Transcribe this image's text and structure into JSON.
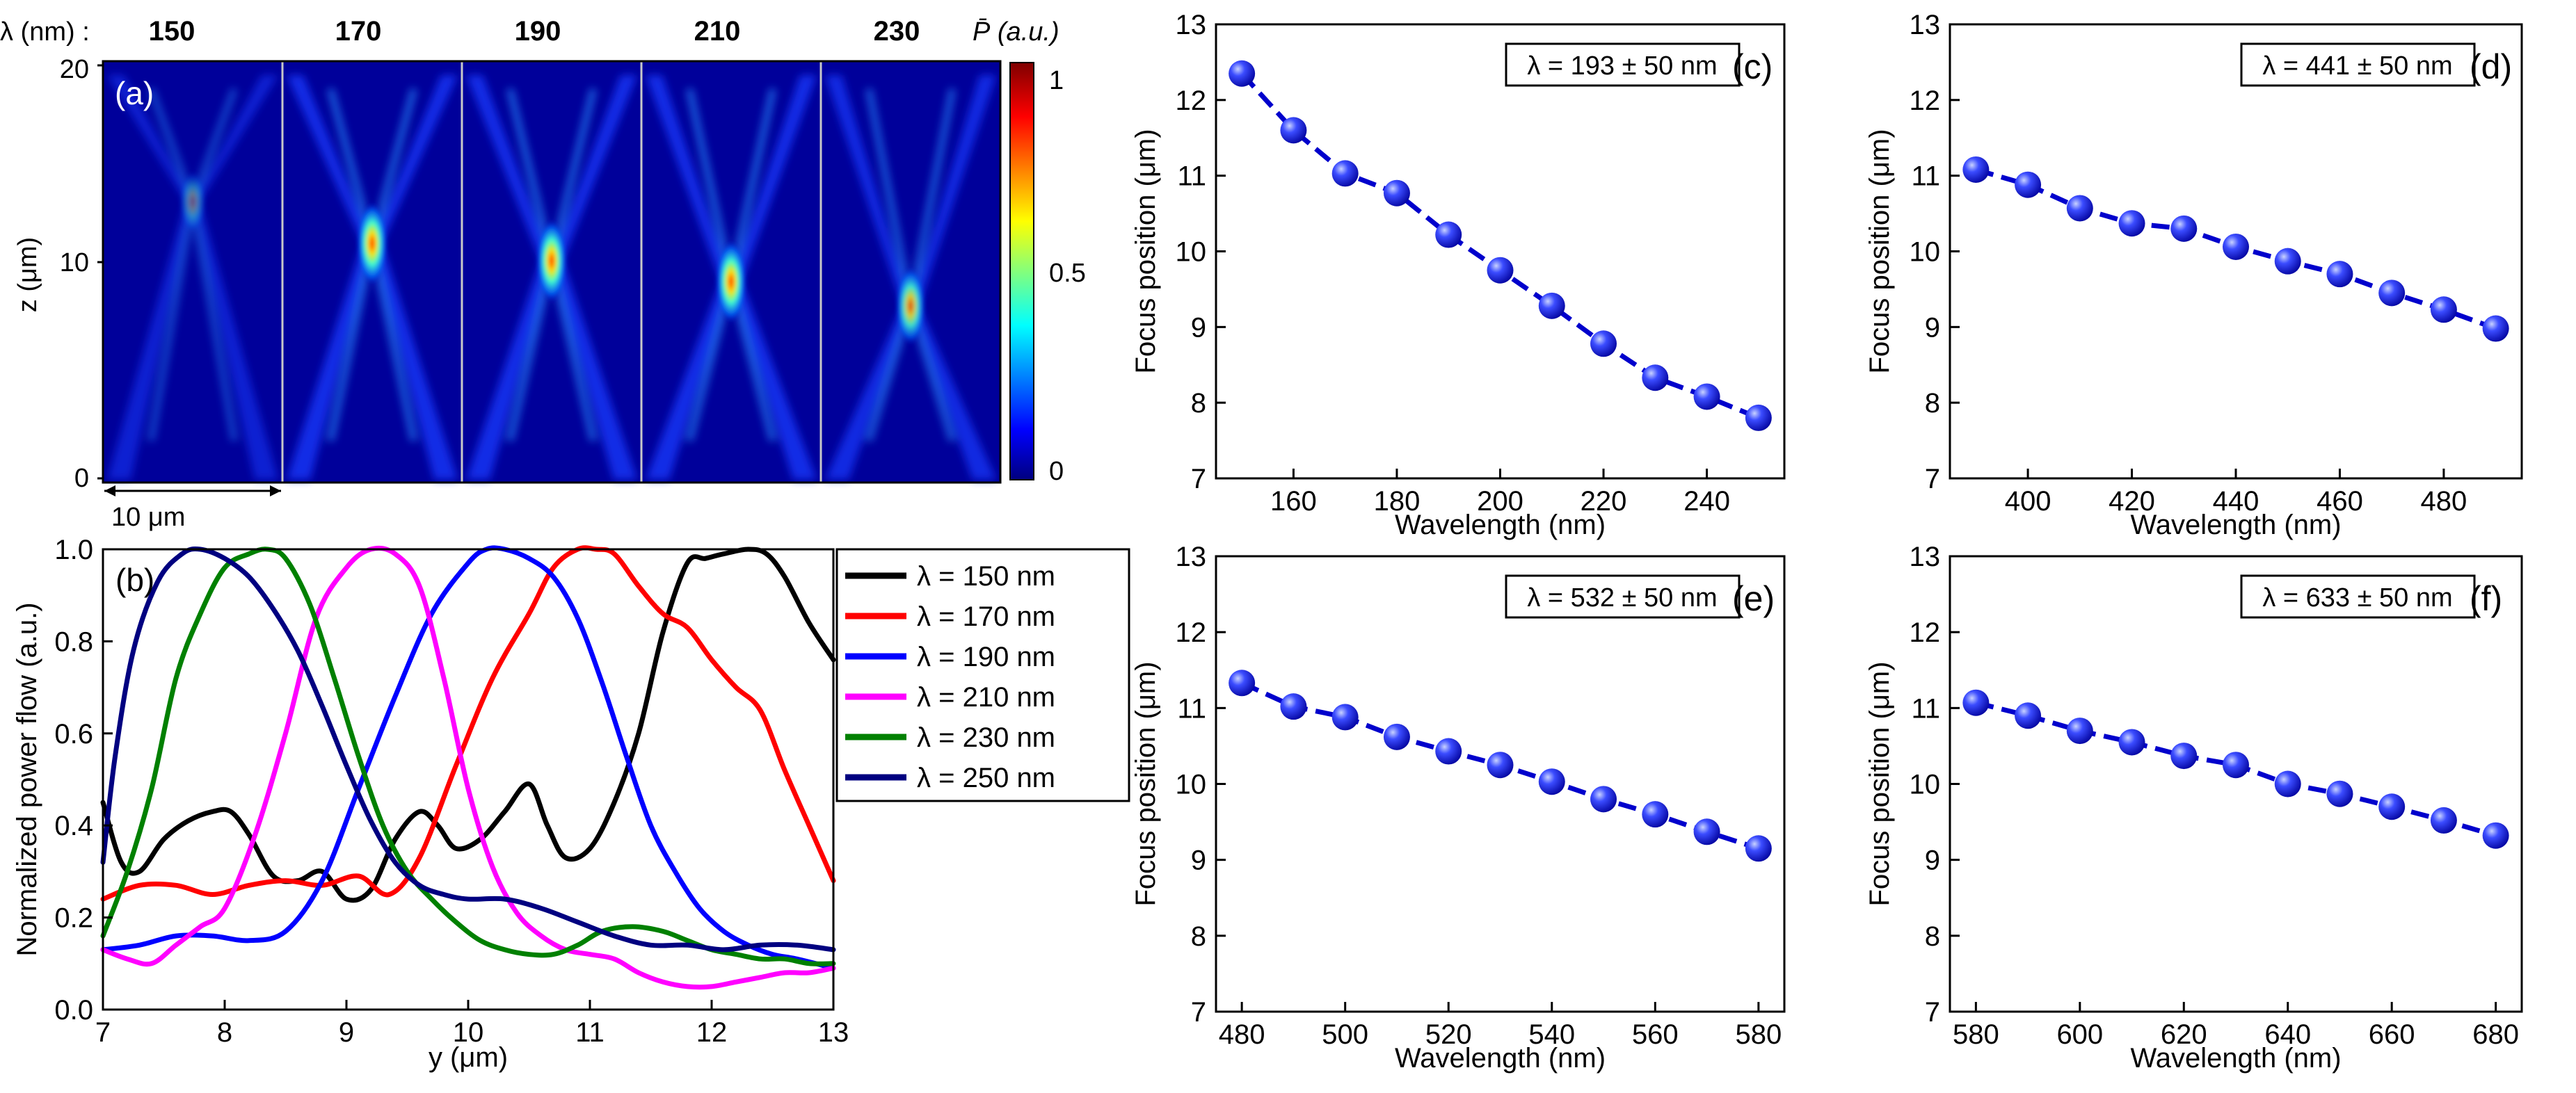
{
  "panel_a": {
    "lambda_label": "λ (nm) :",
    "wavelengths": [
      "150",
      "170",
      "190",
      "210",
      "230"
    ],
    "tag": "(a)",
    "ylabel": "z (μm)",
    "yticks": [
      "0",
      "10",
      "20"
    ],
    "scalebar_label": "10 μm",
    "colorbar_title": "P̄ (a.u.)",
    "colorbar_ticks": [
      "1",
      "0.5",
      "0"
    ],
    "colormap": [
      "#00007f",
      "#0000ff",
      "#00ffff",
      "#ffff00",
      "#ff0000",
      "#7f0000"
    ]
  },
  "chart_data": [
    {
      "id": "b",
      "type": "line",
      "tag": "(b)",
      "title": "",
      "xlabel": "y (μm)",
      "ylabel": "Normalized power flow (a.u.)",
      "xlim": [
        7,
        13
      ],
      "ylim": [
        0,
        1
      ],
      "xticks": [
        "7",
        "8",
        "9",
        "10",
        "11",
        "12",
        "13"
      ],
      "yticks": [
        "0.0",
        "0.2",
        "0.4",
        "0.6",
        "0.8",
        "1.0"
      ],
      "legend": "right",
      "series": [
        {
          "name": "λ = 150 nm",
          "color": "#000000",
          "x": [
            7.0,
            7.15,
            7.3,
            7.5,
            7.7,
            7.9,
            8.05,
            8.2,
            8.4,
            8.6,
            8.8,
            9.0,
            9.2,
            9.4,
            9.6,
            9.75,
            9.9,
            10.1,
            10.3,
            10.5,
            10.65,
            10.8,
            11.0,
            11.2,
            11.4,
            11.6,
            11.8,
            11.95,
            12.1,
            12.3,
            12.45,
            12.6,
            12.8,
            13.0
          ],
          "y": [
            0.45,
            0.32,
            0.3,
            0.37,
            0.41,
            0.43,
            0.43,
            0.38,
            0.29,
            0.28,
            0.3,
            0.24,
            0.26,
            0.37,
            0.43,
            0.4,
            0.35,
            0.37,
            0.43,
            0.49,
            0.4,
            0.33,
            0.35,
            0.45,
            0.6,
            0.82,
            0.97,
            0.98,
            0.99,
            1.0,
            0.99,
            0.94,
            0.84,
            0.76
          ]
        },
        {
          "name": "λ = 170 nm",
          "color": "#ff0000",
          "x": [
            7.0,
            7.3,
            7.6,
            7.9,
            8.2,
            8.5,
            8.8,
            9.1,
            9.35,
            9.6,
            9.9,
            10.2,
            10.5,
            10.7,
            10.9,
            11.05,
            11.2,
            11.4,
            11.6,
            11.8,
            12.0,
            12.2,
            12.4,
            12.6,
            12.8,
            13.0
          ],
          "y": [
            0.24,
            0.27,
            0.27,
            0.25,
            0.27,
            0.28,
            0.27,
            0.29,
            0.25,
            0.33,
            0.53,
            0.72,
            0.86,
            0.96,
            1.0,
            1.0,
            0.99,
            0.92,
            0.86,
            0.83,
            0.76,
            0.7,
            0.65,
            0.52,
            0.4,
            0.28
          ]
        },
        {
          "name": "λ = 190 nm",
          "color": "#0000ff",
          "x": [
            7.0,
            7.3,
            7.6,
            7.9,
            8.2,
            8.5,
            8.8,
            9.1,
            9.4,
            9.7,
            10.0,
            10.15,
            10.3,
            10.5,
            10.7,
            10.9,
            11.1,
            11.3,
            11.5,
            11.7,
            11.9,
            12.1,
            12.3,
            12.5,
            12.7,
            13.0
          ],
          "y": [
            0.13,
            0.14,
            0.16,
            0.16,
            0.15,
            0.17,
            0.28,
            0.48,
            0.68,
            0.86,
            0.97,
            1.0,
            1.0,
            0.98,
            0.94,
            0.85,
            0.71,
            0.55,
            0.4,
            0.3,
            0.22,
            0.17,
            0.14,
            0.12,
            0.11,
            0.09
          ]
        },
        {
          "name": "λ = 210 nm",
          "color": "#ff00ff",
          "x": [
            7.0,
            7.2,
            7.4,
            7.6,
            7.8,
            8.0,
            8.25,
            8.5,
            8.75,
            9.0,
            9.2,
            9.4,
            9.6,
            9.8,
            10.0,
            10.2,
            10.4,
            10.6,
            10.8,
            11.0,
            11.2,
            11.4,
            11.6,
            11.8,
            12.0,
            12.2,
            12.4,
            12.6,
            12.8,
            13.0
          ],
          "y": [
            0.13,
            0.11,
            0.1,
            0.14,
            0.18,
            0.22,
            0.38,
            0.6,
            0.85,
            0.96,
            1.0,
            0.99,
            0.92,
            0.72,
            0.48,
            0.31,
            0.21,
            0.16,
            0.13,
            0.12,
            0.11,
            0.08,
            0.06,
            0.05,
            0.05,
            0.06,
            0.07,
            0.08,
            0.08,
            0.09
          ]
        },
        {
          "name": "λ = 230 nm",
          "color": "#008000",
          "x": [
            7.0,
            7.2,
            7.4,
            7.6,
            7.8,
            8.0,
            8.2,
            8.35,
            8.5,
            8.7,
            8.9,
            9.1,
            9.3,
            9.5,
            9.7,
            9.9,
            10.1,
            10.3,
            10.5,
            10.7,
            10.9,
            11.1,
            11.35,
            11.6,
            11.8,
            12.0,
            12.2,
            12.4,
            12.6,
            12.8,
            13.0
          ],
          "y": [
            0.16,
            0.3,
            0.48,
            0.72,
            0.86,
            0.96,
            0.99,
            1.0,
            0.98,
            0.88,
            0.72,
            0.55,
            0.4,
            0.3,
            0.24,
            0.19,
            0.15,
            0.13,
            0.12,
            0.12,
            0.14,
            0.17,
            0.18,
            0.17,
            0.15,
            0.13,
            0.12,
            0.11,
            0.11,
            0.1,
            0.1
          ]
        },
        {
          "name": "λ = 250 nm",
          "color": "#000080",
          "x": [
            7.0,
            7.1,
            7.25,
            7.45,
            7.65,
            7.8,
            8.0,
            8.2,
            8.4,
            8.6,
            8.8,
            9.0,
            9.2,
            9.4,
            9.6,
            9.8,
            10.0,
            10.3,
            10.6,
            10.9,
            11.2,
            11.5,
            11.8,
            12.1,
            12.4,
            12.7,
            13.0
          ],
          "y": [
            0.32,
            0.55,
            0.78,
            0.93,
            0.99,
            1.0,
            0.98,
            0.94,
            0.87,
            0.78,
            0.66,
            0.53,
            0.41,
            0.32,
            0.27,
            0.25,
            0.24,
            0.24,
            0.22,
            0.19,
            0.16,
            0.14,
            0.14,
            0.13,
            0.14,
            0.14,
            0.13
          ]
        }
      ]
    },
    {
      "id": "c",
      "type": "line",
      "tag": "(c)",
      "box_label": "λ = 193 ± 50 nm",
      "xlabel": "Wavelength (nm)",
      "ylabel": "Focus position (μm)",
      "xlim": [
        145,
        255
      ],
      "ylim": [
        7,
        13
      ],
      "xticks": [
        160,
        180,
        200,
        220,
        240
      ],
      "yticks": [
        7,
        8,
        9,
        10,
        11,
        12,
        13
      ],
      "x": [
        150,
        160,
        170,
        180,
        190,
        200,
        210,
        220,
        230,
        240,
        250
      ],
      "y": [
        12.35,
        11.6,
        11.03,
        10.77,
        10.22,
        9.75,
        9.28,
        8.78,
        8.33,
        8.08,
        7.8
      ]
    },
    {
      "id": "d",
      "type": "line",
      "tag": "(d)",
      "box_label": "λ = 441 ± 50 nm",
      "xlabel": "Wavelength (nm)",
      "ylabel": "Focus position (μm)",
      "xlim": [
        385,
        495
      ],
      "ylim": [
        7,
        13
      ],
      "xticks": [
        400,
        420,
        440,
        460,
        480
      ],
      "yticks": [
        7,
        8,
        9,
        10,
        11,
        12,
        13
      ],
      "x": [
        390,
        400,
        410,
        420,
        430,
        440,
        450,
        460,
        470,
        480,
        490
      ],
      "y": [
        11.08,
        10.88,
        10.57,
        10.37,
        10.3,
        10.06,
        9.87,
        9.7,
        9.45,
        9.23,
        8.98
      ]
    },
    {
      "id": "e",
      "type": "line",
      "tag": "(e)",
      "box_label": "λ = 532 ± 50 nm",
      "xlabel": "Wavelength (nm)",
      "ylabel": "Focus position (μm)",
      "xlim": [
        475,
        585
      ],
      "ylim": [
        7,
        13
      ],
      "xticks": [
        480,
        500,
        520,
        540,
        560,
        580
      ],
      "yticks": [
        7,
        8,
        9,
        10,
        11,
        12,
        13
      ],
      "x": [
        480,
        490,
        500,
        510,
        520,
        530,
        540,
        550,
        560,
        570,
        580
      ],
      "y": [
        11.33,
        11.02,
        10.88,
        10.62,
        10.43,
        10.25,
        10.03,
        9.8,
        9.6,
        9.37,
        9.15
      ]
    },
    {
      "id": "f",
      "type": "line",
      "tag": "(f)",
      "box_label": "λ = 633 ± 50 nm",
      "xlabel": "Wavelength (nm)",
      "ylabel": "Focus position (μm)",
      "xlim": [
        575,
        685
      ],
      "ylim": [
        7,
        13
      ],
      "xticks": [
        580,
        600,
        620,
        640,
        660,
        680
      ],
      "yticks": [
        7,
        8,
        9,
        10,
        11,
        12,
        13
      ],
      "x": [
        580,
        590,
        600,
        610,
        620,
        630,
        640,
        650,
        660,
        670,
        680
      ],
      "y": [
        11.07,
        10.9,
        10.7,
        10.55,
        10.37,
        10.25,
        10.0,
        9.87,
        9.7,
        9.52,
        9.32
      ]
    }
  ]
}
